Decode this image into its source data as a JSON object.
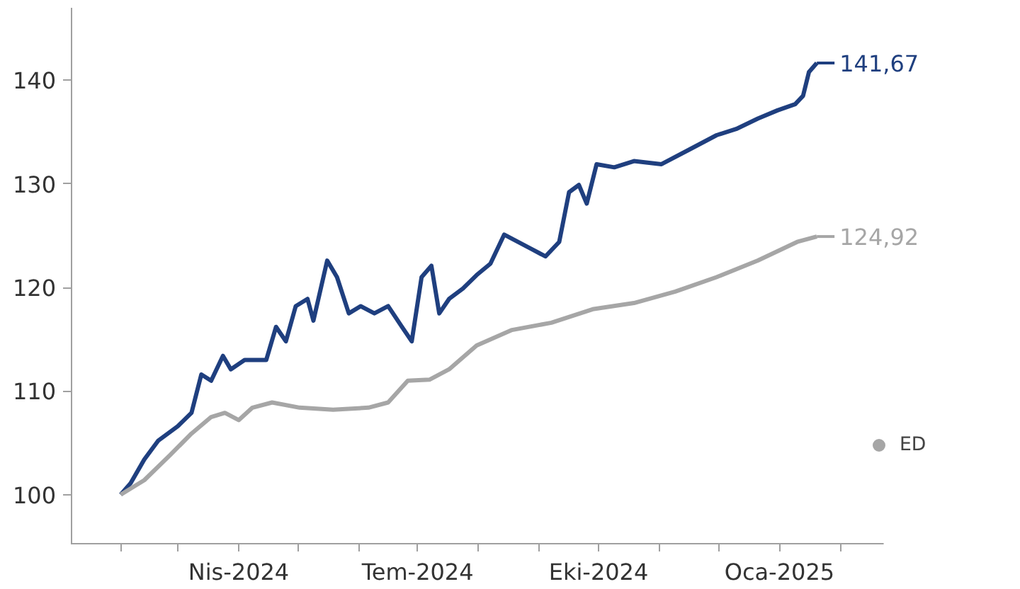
{
  "chart_data": {
    "type": "line",
    "xlim": [
      "2024-01-07",
      "2025-02-23"
    ],
    "ylim": [
      95.2,
      147
    ],
    "xticks": [
      {
        "value": "2024-02-01",
        "label": null
      },
      {
        "value": "2024-03-01",
        "label": null
      },
      {
        "value": "2024-04-01",
        "label": "Nis-2024"
      },
      {
        "value": "2024-05-01",
        "label": null
      },
      {
        "value": "2024-06-01",
        "label": null
      },
      {
        "value": "2024-07-01",
        "label": "Tem-2024"
      },
      {
        "value": "2024-08-01",
        "label": null
      },
      {
        "value": "2024-09-01",
        "label": null
      },
      {
        "value": "2024-10-01",
        "label": "Eki-2024"
      },
      {
        "value": "2024-11-01",
        "label": null
      },
      {
        "value": "2024-12-01",
        "label": null
      },
      {
        "value": "2025-01-01",
        "label": "Oca-2025"
      },
      {
        "value": "2025-02-01",
        "label": null
      }
    ],
    "yticks": [
      100,
      110,
      120,
      130,
      140
    ],
    "grid": false,
    "legend": "bottom right",
    "series": [
      {
        "color": "#1f3f7f",
        "x": [
          "2024-02-01",
          "2024-02-06",
          "2024-02-13",
          "2024-02-20",
          "2024-03-01",
          "2024-03-08",
          "2024-03-13",
          "2024-03-18",
          "2024-03-24",
          "2024-03-28",
          "2024-04-04",
          "2024-04-15",
          "2024-04-20",
          "2024-04-25",
          "2024-04-30",
          "2024-05-06",
          "2024-05-09",
          "2024-05-16",
          "2024-05-21",
          "2024-05-27",
          "2024-06-02",
          "2024-06-09",
          "2024-06-16",
          "2024-06-23",
          "2024-06-28",
          "2024-07-03",
          "2024-07-08",
          "2024-07-12",
          "2024-07-17",
          "2024-07-24",
          "2024-07-31",
          "2024-08-07",
          "2024-08-14",
          "2024-08-21",
          "2024-08-28",
          "2024-09-04",
          "2024-09-11",
          "2024-09-16",
          "2024-09-21",
          "2024-09-25",
          "2024-09-30",
          "2024-10-09",
          "2024-10-19",
          "2024-11-02",
          "2024-11-16",
          "2024-11-30",
          "2024-12-10",
          "2024-12-21",
          "2024-12-31",
          "2025-01-09",
          "2025-01-13",
          "2025-01-16",
          "2025-01-20"
        ],
        "values": [
          100,
          101.1,
          103.4,
          105.2,
          106.6,
          107.9,
          111.6,
          111,
          113.4,
          112.1,
          113,
          113,
          116.2,
          114.8,
          118.2,
          118.9,
          116.8,
          122.6,
          121,
          117.5,
          118.2,
          117.5,
          118.2,
          116.2,
          114.8,
          121,
          122.1,
          117.5,
          118.9,
          119.9,
          121.2,
          122.3,
          125.1,
          124.4,
          123.7,
          123,
          124.4,
          129.2,
          129.9,
          128.1,
          131.9,
          131.6,
          132.2,
          131.9,
          133.3,
          134.7,
          135.3,
          136.3,
          137.1,
          137.7,
          138.5,
          140.8,
          141.67
        ]
      },
      {
        "name": "ED",
        "color": "#a6a6a6",
        "x": [
          "2024-02-01",
          "2024-02-13",
          "2024-02-26",
          "2024-03-08",
          "2024-03-18",
          "2024-03-25",
          "2024-04-01",
          "2024-04-08",
          "2024-04-18",
          "2024-05-02",
          "2024-05-19",
          "2024-06-06",
          "2024-06-16",
          "2024-06-26",
          "2024-07-07",
          "2024-07-17",
          "2024-07-31",
          "2024-08-18",
          "2024-09-07",
          "2024-09-28",
          "2024-10-19",
          "2024-11-09",
          "2024-11-30",
          "2024-12-21",
          "2025-01-10",
          "2025-01-20"
        ],
        "values": [
          100,
          101.4,
          103.8,
          105.9,
          107.5,
          107.9,
          107.2,
          108.4,
          108.9,
          108.4,
          108.2,
          108.4,
          108.9,
          111,
          111.1,
          112.1,
          114.4,
          115.9,
          116.6,
          117.9,
          118.5,
          119.6,
          121,
          122.6,
          124.4,
          124.92
        ]
      }
    ],
    "annotations": [
      {
        "text": "141,67",
        "x": "2025-01-20",
        "y": 141.67
      },
      {
        "text": "124,92",
        "x": "2025-01-20",
        "y": 124.92
      }
    ]
  }
}
